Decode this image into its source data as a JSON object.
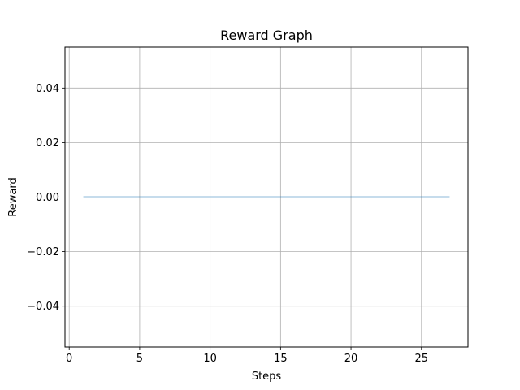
{
  "chart_data": {
    "type": "line",
    "title": "Reward Graph",
    "xlabel": "Steps",
    "ylabel": "Reward",
    "xlim": [
      -0.3,
      28.3
    ],
    "ylim": [
      -0.055,
      0.055
    ],
    "xticks": [
      0,
      5,
      10,
      15,
      20,
      25
    ],
    "yticks": [
      -0.04,
      -0.02,
      0.0,
      0.02,
      0.04
    ],
    "xtick_labels": [
      "0",
      "5",
      "10",
      "15",
      "20",
      "25"
    ],
    "ytick_labels": [
      "−0.04",
      "−0.02",
      "0.00",
      "0.02",
      "0.04"
    ],
    "grid": true,
    "series": [
      {
        "color": "#1f77b4",
        "x": [
          1,
          2,
          3,
          4,
          5,
          6,
          7,
          8,
          9,
          10,
          11,
          12,
          13,
          14,
          15,
          16,
          17,
          18,
          19,
          20,
          21,
          22,
          23,
          24,
          25,
          26,
          27
        ],
        "y": [
          0,
          0,
          0,
          0,
          0,
          0,
          0,
          0,
          0,
          0,
          0,
          0,
          0,
          0,
          0,
          0,
          0,
          0,
          0,
          0,
          0,
          0,
          0,
          0,
          0,
          0,
          0
        ]
      }
    ]
  }
}
